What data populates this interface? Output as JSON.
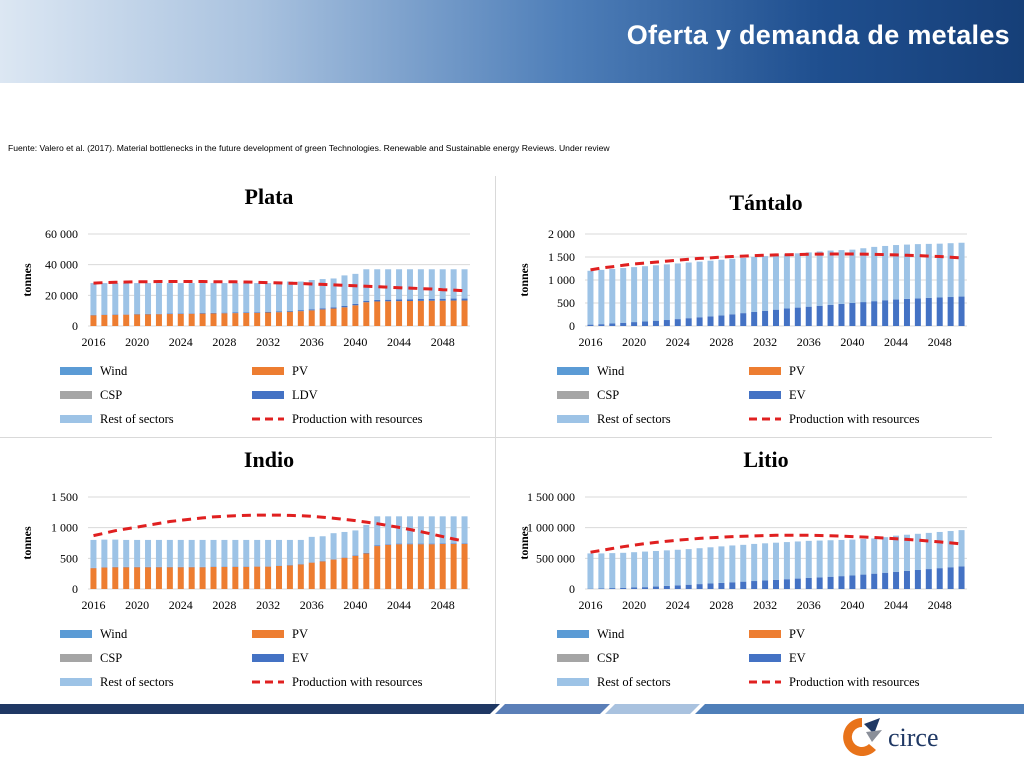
{
  "header": {
    "title": "Oferta y demanda de metales"
  },
  "source_note": "Fuente: Valero et al. (2017). Material bottlenecks in the future development of green Technologies. Renewable and Sustainable energy Reviews. Under review",
  "logo": {
    "text": "circe"
  },
  "colors": {
    "wind": "#5b9bd5",
    "pv": "#ed7d31",
    "csp": "#a5a5a5",
    "ev": "#4472c4",
    "rest": "#9dc3e6",
    "production": "#e02020"
  },
  "chart_data": [
    {
      "type": "bar",
      "stacked": true,
      "title": "Plata",
      "xlabel": "",
      "ylabel": "tonnes",
      "x": [
        2016,
        2017,
        2018,
        2019,
        2020,
        2021,
        2022,
        2023,
        2024,
        2025,
        2026,
        2027,
        2028,
        2029,
        2030,
        2031,
        2032,
        2033,
        2034,
        2035,
        2036,
        2037,
        2038,
        2039,
        2040,
        2041,
        2042,
        2043,
        2044,
        2045,
        2046,
        2047,
        2048,
        2049,
        2050
      ],
      "x_ticks": [
        "2016",
        "2020",
        "2024",
        "2028",
        "2032",
        "2036",
        "2040",
        "2044",
        "2048"
      ],
      "ylim": [
        0,
        60000
      ],
      "y_ticks": [
        "0",
        "20 000",
        "40 000",
        "60 000"
      ],
      "legend": [
        "Wind",
        "PV",
        "CSP",
        "LDV",
        "Rest of sectors",
        "Production with resources"
      ],
      "series": [
        {
          "name": "PV",
          "color_key": "pv",
          "values": [
            7000,
            7200,
            7300,
            7400,
            7500,
            7600,
            7700,
            7800,
            7900,
            8000,
            8100,
            8200,
            8300,
            8400,
            8500,
            8600,
            8800,
            9000,
            9300,
            9700,
            10200,
            10800,
            11400,
            12200,
            13500,
            15500,
            16000,
            16100,
            16200,
            16300,
            16400,
            16500,
            16500,
            16600,
            16600
          ]
        },
        {
          "name": "LDV",
          "color_key": "ev",
          "values": [
            200,
            200,
            200,
            200,
            250,
            250,
            250,
            300,
            300,
            300,
            350,
            350,
            400,
            400,
            450,
            450,
            500,
            550,
            600,
            650,
            700,
            750,
            800,
            850,
            900,
            950,
            1000,
            1050,
            1100,
            1150,
            1200,
            1250,
            1300,
            1300,
            1300
          ]
        },
        {
          "name": "Rest of sectors",
          "color_key": "rest",
          "values": [
            20800,
            20600,
            20500,
            20400,
            20250,
            20150,
            20050,
            19900,
            19800,
            19700,
            19550,
            19450,
            19300,
            19200,
            19050,
            18950,
            18700,
            19450,
            19100,
            18650,
            19100,
            19050,
            18800,
            19950,
            19600,
            20550,
            20000,
            19850,
            19700,
            19550,
            19400,
            19250,
            19200,
            19100,
            19100
          ]
        }
      ],
      "line": {
        "name": "Production with resources",
        "color_key": "production",
        "values": [
          28000,
          28300,
          28500,
          28700,
          28800,
          28900,
          29000,
          29000,
          29000,
          29000,
          29000,
          28900,
          28900,
          28800,
          28700,
          28500,
          28300,
          28100,
          27900,
          27700,
          27400,
          27100,
          26800,
          26500,
          26200,
          25900,
          25600,
          25300,
          25000,
          24700,
          24400,
          24100,
          23700,
          23400,
          23000
        ]
      }
    },
    {
      "type": "bar",
      "stacked": true,
      "title": "Tántalo",
      "xlabel": "",
      "ylabel": "tonnes",
      "x": [
        2016,
        2017,
        2018,
        2019,
        2020,
        2021,
        2022,
        2023,
        2024,
        2025,
        2026,
        2027,
        2028,
        2029,
        2030,
        2031,
        2032,
        2033,
        2034,
        2035,
        2036,
        2037,
        2038,
        2039,
        2040,
        2041,
        2042,
        2043,
        2044,
        2045,
        2046,
        2047,
        2048,
        2049,
        2050
      ],
      "x_ticks": [
        "2016",
        "2020",
        "2024",
        "2028",
        "2032",
        "2036",
        "2040",
        "2044",
        "2048"
      ],
      "ylim": [
        0,
        2000
      ],
      "y_ticks": [
        "0",
        "500",
        "1 000",
        "1 500",
        "2 000"
      ],
      "legend": [
        "Wind",
        "PV",
        "CSP",
        "EV",
        "Rest of sectors",
        "Production with resources"
      ],
      "series": [
        {
          "name": "EV",
          "color_key": "ev",
          "values": [
            30,
            40,
            55,
            70,
            85,
            100,
            115,
            130,
            150,
            170,
            190,
            210,
            230,
            255,
            280,
            305,
            330,
            355,
            380,
            400,
            420,
            440,
            460,
            480,
            500,
            520,
            540,
            560,
            575,
            590,
            600,
            610,
            620,
            630,
            640
          ]
        },
        {
          "name": "Rest of sectors",
          "color_key": "rest",
          "values": [
            1170,
            1180,
            1185,
            1190,
            1195,
            1200,
            1205,
            1210,
            1210,
            1210,
            1210,
            1210,
            1210,
            1205,
            1200,
            1195,
            1190,
            1185,
            1180,
            1180,
            1180,
            1180,
            1180,
            1170,
            1160,
            1170,
            1180,
            1180,
            1185,
            1180,
            1180,
            1175,
            1170,
            1170,
            1170
          ]
        }
      ],
      "line": {
        "name": "Production with resources",
        "color_key": "production",
        "values": [
          1220,
          1260,
          1290,
          1320,
          1350,
          1370,
          1390,
          1410,
          1430,
          1450,
          1470,
          1480,
          1500,
          1510,
          1520,
          1530,
          1540,
          1545,
          1550,
          1555,
          1560,
          1562,
          1565,
          1565,
          1565,
          1562,
          1558,
          1552,
          1545,
          1538,
          1530,
          1520,
          1510,
          1495,
          1480
        ]
      }
    },
    {
      "type": "bar",
      "stacked": true,
      "title": "Indio",
      "xlabel": "",
      "ylabel": "tonnes",
      "x": [
        2016,
        2017,
        2018,
        2019,
        2020,
        2021,
        2022,
        2023,
        2024,
        2025,
        2026,
        2027,
        2028,
        2029,
        2030,
        2031,
        2032,
        2033,
        2034,
        2035,
        2036,
        2037,
        2038,
        2039,
        2040,
        2041,
        2042,
        2043,
        2044,
        2045,
        2046,
        2047,
        2048,
        2049,
        2050
      ],
      "x_ticks": [
        "2016",
        "2020",
        "2024",
        "2028",
        "2032",
        "2036",
        "2040",
        "2044",
        "2048"
      ],
      "ylim": [
        0,
        1500
      ],
      "y_ticks": [
        "0",
        "500",
        "1 000",
        "1 500"
      ],
      "legend": [
        "Wind",
        "PV",
        "CSP",
        "EV",
        "Rest of sectors",
        "Production with resources"
      ],
      "series": [
        {
          "name": "PV",
          "color_key": "pv",
          "values": [
            340,
            350,
            355,
            355,
            355,
            355,
            355,
            355,
            355,
            355,
            355,
            360,
            360,
            360,
            360,
            365,
            365,
            375,
            385,
            400,
            430,
            450,
            480,
            510,
            540,
            580,
            700,
            720,
            730,
            730,
            730,
            730,
            735,
            735,
            735
          ]
        },
        {
          "name": "EV",
          "color_key": "ev",
          "values": [
            5,
            5,
            5,
            5,
            5,
            5,
            5,
            5,
            5,
            5,
            5,
            5,
            5,
            5,
            5,
            5,
            5,
            5,
            5,
            5,
            5,
            5,
            5,
            5,
            10,
            10,
            10,
            10,
            10,
            10,
            10,
            10,
            10,
            10,
            10
          ]
        },
        {
          "name": "Rest of sectors",
          "color_key": "rest",
          "values": [
            455,
            450,
            445,
            440,
            440,
            440,
            440,
            440,
            440,
            440,
            440,
            435,
            435,
            435,
            435,
            430,
            430,
            420,
            410,
            395,
            415,
            405,
            425,
            415,
            405,
            455,
            475,
            455,
            445,
            445,
            445,
            445,
            440,
            440,
            440
          ]
        }
      ],
      "line": {
        "name": "Production with resources",
        "color_key": "production",
        "values": [
          870,
          910,
          950,
          980,
          1010,
          1040,
          1070,
          1100,
          1120,
          1140,
          1160,
          1175,
          1185,
          1195,
          1200,
          1205,
          1205,
          1205,
          1200,
          1195,
          1185,
          1170,
          1155,
          1135,
          1115,
          1090,
          1065,
          1035,
          1005,
          970,
          935,
          895,
          855,
          815,
          780
        ]
      }
    },
    {
      "type": "bar",
      "stacked": true,
      "title": "Litio",
      "xlabel": "",
      "ylabel": "tonnes",
      "x": [
        2016,
        2017,
        2018,
        2019,
        2020,
        2021,
        2022,
        2023,
        2024,
        2025,
        2026,
        2027,
        2028,
        2029,
        2030,
        2031,
        2032,
        2033,
        2034,
        2035,
        2036,
        2037,
        2038,
        2039,
        2040,
        2041,
        2042,
        2043,
        2044,
        2045,
        2046,
        2047,
        2048,
        2049,
        2050
      ],
      "x_ticks": [
        "2016",
        "2020",
        "2024",
        "2028",
        "2032",
        "2036",
        "2040",
        "2044",
        "2048"
      ],
      "ylim": [
        0,
        1500000
      ],
      "y_ticks": [
        "0",
        "500 000",
        "1 000 000",
        "1 500 000"
      ],
      "legend": [
        "Wind",
        "PV",
        "CSP",
        "EV",
        "Rest of sectors",
        "Production with resources"
      ],
      "series": [
        {
          "name": "EV",
          "color_key": "ev",
          "values": [
            5000,
            10000,
            15000,
            20000,
            25000,
            30000,
            40000,
            50000,
            60000,
            70000,
            80000,
            90000,
            100000,
            110000,
            120000,
            130000,
            140000,
            150000,
            160000,
            170000,
            180000,
            190000,
            200000,
            210000,
            220000,
            235000,
            250000,
            265000,
            280000,
            295000,
            310000,
            325000,
            340000,
            355000,
            370000
          ]
        },
        {
          "name": "Rest of sectors",
          "color_key": "rest",
          "values": [
            575000,
            570000,
            570000,
            570000,
            575000,
            580000,
            580000,
            580000,
            580000,
            580000,
            585000,
            590000,
            595000,
            600000,
            600000,
            605000,
            605000,
            605000,
            605000,
            605000,
            605000,
            600000,
            595000,
            590000,
            585000,
            580000,
            575000,
            580000,
            590000,
            590000,
            590000,
            590000,
            590000,
            590000,
            590000
          ]
        }
      ],
      "line": {
        "name": "Production with resources",
        "color_key": "production",
        "values": [
          600000,
          630000,
          660000,
          690000,
          715000,
          740000,
          760000,
          780000,
          795000,
          810000,
          825000,
          835000,
          845000,
          855000,
          860000,
          865000,
          870000,
          875000,
          875000,
          875000,
          875000,
          872000,
          868000,
          862000,
          855000,
          848000,
          840000,
          830000,
          820000,
          808000,
          796000,
          782000,
          768000,
          752000,
          735000
        ]
      }
    }
  ]
}
